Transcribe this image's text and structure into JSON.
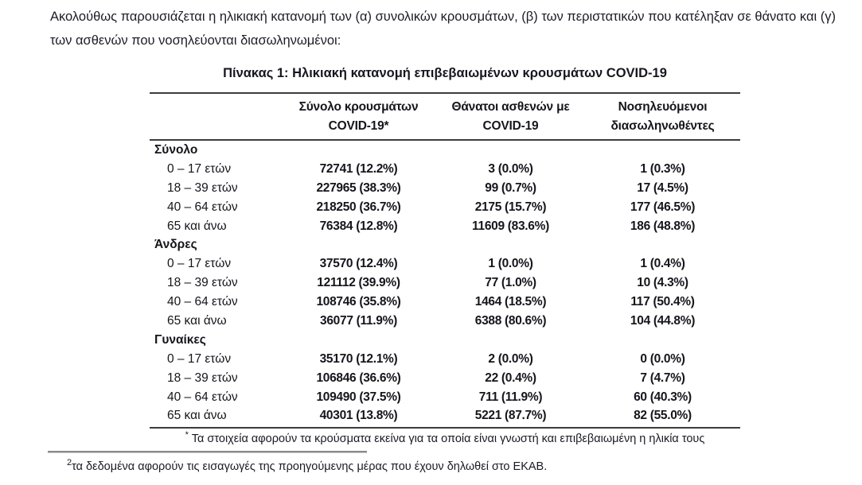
{
  "colors": {
    "text": "#1c1c26",
    "table_rule": "#3c3c3c",
    "footnote_separator": "#8a8a8a"
  },
  "intro": "Ακολούθως παρουσιάζεται η ηλικιακή κατανομή των (α) συνολικών κρουσμάτων, (β) των περιστατικών που κατέληξαν σε θάνατο και (γ) των ασθενών που νοσηλεύονται διασωληνωμένοι:",
  "table": {
    "title": "Πίνακας 1: Ηλικιακή κατανομή επιβεβαιωμένων κρουσμάτων COVID-19",
    "columns": [
      {
        "line1": "",
        "line2": ""
      },
      {
        "line1": "Σύνολο κρουσμάτων",
        "line2": "COVID-19*"
      },
      {
        "line1": "Θάνατοι ασθενών με",
        "line2": "COVID-19"
      },
      {
        "line1": "Νοσηλευόμενοι",
        "line2": "διασωληνωθέντες"
      }
    ],
    "sections": [
      {
        "label": "Σύνολο",
        "rows": [
          {
            "age": "0 – 17 ετών",
            "cases": "72741 (12.2%)",
            "deaths": "3 (0.0%)",
            "intubated": "1 (0.3%)"
          },
          {
            "age": "18 – 39 ετών",
            "cases": "227965 (38.3%)",
            "deaths": "99 (0.7%)",
            "intubated": "17 (4.5%)"
          },
          {
            "age": "40 – 64 ετών",
            "cases": "218250 (36.7%)",
            "deaths": "2175 (15.7%)",
            "intubated": "177 (46.5%)"
          },
          {
            "age": "65 και άνω",
            "cases": "76384 (12.8%)",
            "deaths": "11609 (83.6%)",
            "intubated": "186 (48.8%)"
          }
        ]
      },
      {
        "label": "Άνδρες",
        "rows": [
          {
            "age": "0 – 17 ετών",
            "cases": "37570 (12.4%)",
            "deaths": "1 (0.0%)",
            "intubated": "1 (0.4%)"
          },
          {
            "age": "18 – 39 ετών",
            "cases": "121112 (39.9%)",
            "deaths": "77 (1.0%)",
            "intubated": "10 (4.3%)"
          },
          {
            "age": "40 – 64 ετών",
            "cases": "108746 (35.8%)",
            "deaths": "1464 (18.5%)",
            "intubated": "117 (50.4%)"
          },
          {
            "age": "65 και άνω",
            "cases": "36077 (11.9%)",
            "deaths": "6388 (80.6%)",
            "intubated": "104 (44.8%)"
          }
        ]
      },
      {
        "label": "Γυναίκες",
        "rows": [
          {
            "age": "0 – 17 ετών",
            "cases": "35170 (12.1%)",
            "deaths": "2 (0.0%)",
            "intubated": "0 (0.0%)"
          },
          {
            "age": "18 – 39 ετών",
            "cases": "106846 (36.6%)",
            "deaths": "22 (0.4%)",
            "intubated": "7 (4.7%)"
          },
          {
            "age": "40 – 64 ετών",
            "cases": "109490 (37.5%)",
            "deaths": "711 (11.9%)",
            "intubated": "60 (40.3%)"
          },
          {
            "age": "65 και άνω",
            "cases": "40301 (13.8%)",
            "deaths": "5221 (87.7%)",
            "intubated": "82 (55.0%)"
          }
        ]
      }
    ],
    "footnote_marker": "*",
    "footnote_text": "Τα στοιχεία αφορούν τα κρούσματα εκείνα για τα οποία είναι γνωστή και επιβεβαιωμένη η ηλικία τους"
  },
  "page_footnote": {
    "marker": "2",
    "text": "τα δεδομένα αφορούν τις εισαγωγές της προηγούμενης μέρας που έχουν δηλωθεί στο ΕΚΑΒ."
  }
}
